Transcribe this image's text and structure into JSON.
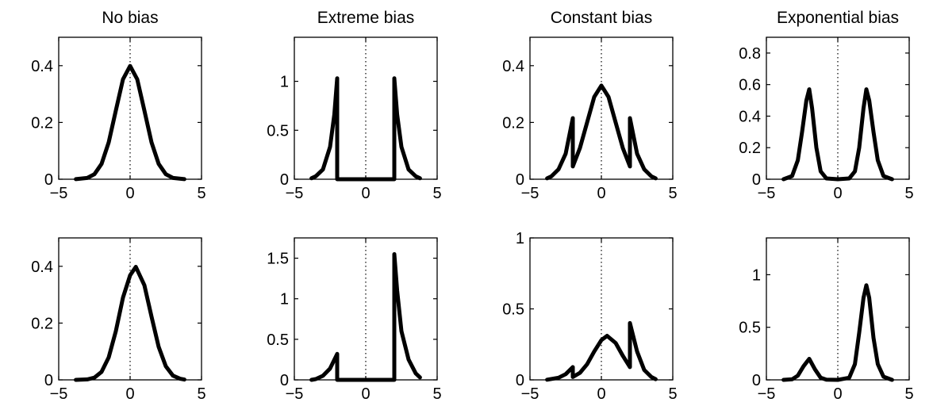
{
  "figure": {
    "rows": 2,
    "cols": 4,
    "x_domain": [
      -5,
      5
    ],
    "x_ticks": [
      -5,
      0,
      5
    ],
    "x_tick_labels": [
      "−5",
      "0",
      "5"
    ],
    "curve_color": "#000000",
    "reference_line": {
      "x": 0,
      "style": "dotted"
    }
  },
  "chart_data": [
    {
      "type": "line",
      "row": 0,
      "col": 0,
      "title": "No bias",
      "ylim": [
        0,
        0.5
      ],
      "yticks": [
        0,
        0.2,
        0.4
      ],
      "ytick_labels": [
        "0",
        "0.2",
        "0.4"
      ],
      "xlabel": "",
      "ylabel": "",
      "series": [
        {
          "x": [
            -3.8,
            -3.0,
            -2.5,
            -2.0,
            -1.5,
            -1.0,
            -0.5,
            0.0,
            0.5,
            1.0,
            1.5,
            2.0,
            2.5,
            3.0,
            3.8
          ],
          "y": [
            0.0003,
            0.0044,
            0.0175,
            0.054,
            0.1295,
            0.242,
            0.352,
            0.399,
            0.352,
            0.242,
            0.1295,
            0.054,
            0.0175,
            0.0044,
            0.0003
          ]
        }
      ]
    },
    {
      "type": "line",
      "row": 0,
      "col": 1,
      "title": "Extreme bias",
      "ylim": [
        0,
        1.45
      ],
      "yticks": [
        0,
        0.5,
        1
      ],
      "ytick_labels": [
        "0",
        "0.5",
        "1"
      ],
      "xlabel": "",
      "ylabel": "",
      "series": [
        {
          "x": [
            -3.8,
            -3.5,
            -3.0,
            -2.5,
            -2.2,
            -2.0,
            -2.0,
            2.0,
            2.0,
            2.2,
            2.5,
            3.0,
            3.5,
            3.8
          ],
          "y": [
            0.01,
            0.03,
            0.1,
            0.33,
            0.66,
            1.03,
            0,
            0,
            1.03,
            0.66,
            0.33,
            0.1,
            0.03,
            0.01
          ]
        }
      ]
    },
    {
      "type": "line",
      "row": 0,
      "col": 2,
      "title": "Constant bias",
      "ylim": [
        0,
        0.5
      ],
      "yticks": [
        0,
        0.2,
        0.4
      ],
      "ytick_labels": [
        "0",
        "0.2",
        "0.4"
      ],
      "xlabel": "",
      "ylabel": "",
      "series": [
        {
          "x": [
            -3.8,
            -3.5,
            -3.0,
            -2.5,
            -2.0,
            -2.0,
            -1.5,
            -1.0,
            -0.5,
            0.0,
            0.5,
            1.0,
            1.5,
            2.0,
            2.0,
            2.5,
            3.0,
            3.5,
            3.8
          ],
          "y": [
            0.003,
            0.01,
            0.035,
            0.09,
            0.215,
            0.045,
            0.11,
            0.2,
            0.29,
            0.33,
            0.29,
            0.2,
            0.11,
            0.045,
            0.215,
            0.09,
            0.035,
            0.01,
            0.003
          ]
        }
      ]
    },
    {
      "type": "line",
      "row": 0,
      "col": 3,
      "title": "Exponential bias",
      "ylim": [
        0,
        0.9
      ],
      "yticks": [
        0,
        0.2,
        0.4,
        0.6,
        0.8
      ],
      "ytick_labels": [
        "0",
        "0.2",
        "0.4",
        "0.6",
        "0.8"
      ],
      "xlabel": "",
      "ylabel": "",
      "series": [
        {
          "x": [
            -3.8,
            -3.2,
            -2.8,
            -2.5,
            -2.2,
            -2.0,
            -1.8,
            -1.5,
            -1.2,
            -0.8,
            0.0,
            0.8,
            1.2,
            1.5,
            1.8,
            2.0,
            2.2,
            2.5,
            2.8,
            3.2,
            3.8
          ],
          "y": [
            0.0,
            0.02,
            0.12,
            0.3,
            0.5,
            0.57,
            0.45,
            0.2,
            0.05,
            0.005,
            0.0,
            0.005,
            0.05,
            0.2,
            0.45,
            0.57,
            0.5,
            0.3,
            0.12,
            0.02,
            0.0
          ]
        }
      ]
    },
    {
      "type": "line",
      "row": 1,
      "col": 0,
      "title": "",
      "ylim": [
        0,
        0.5
      ],
      "yticks": [
        0,
        0.2,
        0.4
      ],
      "ytick_labels": [
        "0",
        "0.2",
        "0.4"
      ],
      "xlabel": "",
      "ylabel": "",
      "series": [
        {
          "x": [
            -3.8,
            -3.0,
            -2.5,
            -2.0,
            -1.5,
            -1.0,
            -0.5,
            0.0,
            0.4,
            1.0,
            1.5,
            2.0,
            2.5,
            3.0,
            3.5,
            3.8
          ],
          "y": [
            0.0001,
            0.0017,
            0.0079,
            0.0283,
            0.079,
            0.1714,
            0.2897,
            0.3683,
            0.398,
            0.3332,
            0.2227,
            0.1163,
            0.0478,
            0.0147,
            0.0038,
            0.0012
          ]
        }
      ]
    },
    {
      "type": "line",
      "row": 1,
      "col": 1,
      "title": "",
      "ylim": [
        0,
        1.75
      ],
      "yticks": [
        0,
        0.5,
        1,
        1.5
      ],
      "ytick_labels": [
        "0",
        "0.5",
        "1",
        "1.5"
      ],
      "xlabel": "",
      "ylabel": "",
      "series": [
        {
          "x": [
            -3.8,
            -3.5,
            -3.0,
            -2.5,
            -2.0,
            -2.0,
            2.0,
            2.0,
            2.2,
            2.5,
            3.0,
            3.5,
            3.8
          ],
          "y": [
            0.0,
            0.01,
            0.05,
            0.14,
            0.32,
            0,
            0,
            1.55,
            1.1,
            0.6,
            0.25,
            0.08,
            0.03
          ]
        }
      ]
    },
    {
      "type": "line",
      "row": 1,
      "col": 2,
      "title": "",
      "ylim": [
        0,
        1
      ],
      "yticks": [
        0,
        0.5,
        1
      ],
      "ytick_labels": [
        "0",
        "0.5",
        "1"
      ],
      "xlabel": "",
      "ylabel": "",
      "series": [
        {
          "x": [
            -3.8,
            -3.0,
            -2.5,
            -2.0,
            -2.0,
            -1.5,
            -1.0,
            -0.5,
            0.0,
            0.4,
            1.0,
            1.5,
            2.0,
            2.0,
            2.5,
            3.0,
            3.5,
            3.8
          ],
          "y": [
            0.001,
            0.015,
            0.04,
            0.09,
            0.02,
            0.05,
            0.11,
            0.2,
            0.28,
            0.31,
            0.26,
            0.17,
            0.09,
            0.4,
            0.2,
            0.07,
            0.02,
            0.005
          ]
        }
      ]
    },
    {
      "type": "line",
      "row": 1,
      "col": 3,
      "title": "",
      "ylim": [
        0,
        1.35
      ],
      "yticks": [
        0,
        0.5,
        1
      ],
      "ytick_labels": [
        "0",
        "0.5",
        "1"
      ],
      "xlabel": "",
      "ylabel": "",
      "series": [
        {
          "x": [
            -3.8,
            -3.2,
            -2.8,
            -2.4,
            -2.0,
            -1.6,
            -1.2,
            -0.8,
            0.0,
            0.8,
            1.2,
            1.5,
            1.8,
            2.0,
            2.2,
            2.5,
            2.8,
            3.2,
            3.8
          ],
          "y": [
            0.0,
            0.005,
            0.04,
            0.13,
            0.2,
            0.1,
            0.02,
            0.002,
            0.0,
            0.02,
            0.15,
            0.45,
            0.78,
            0.9,
            0.78,
            0.4,
            0.15,
            0.03,
            0.0
          ]
        }
      ]
    }
  ]
}
